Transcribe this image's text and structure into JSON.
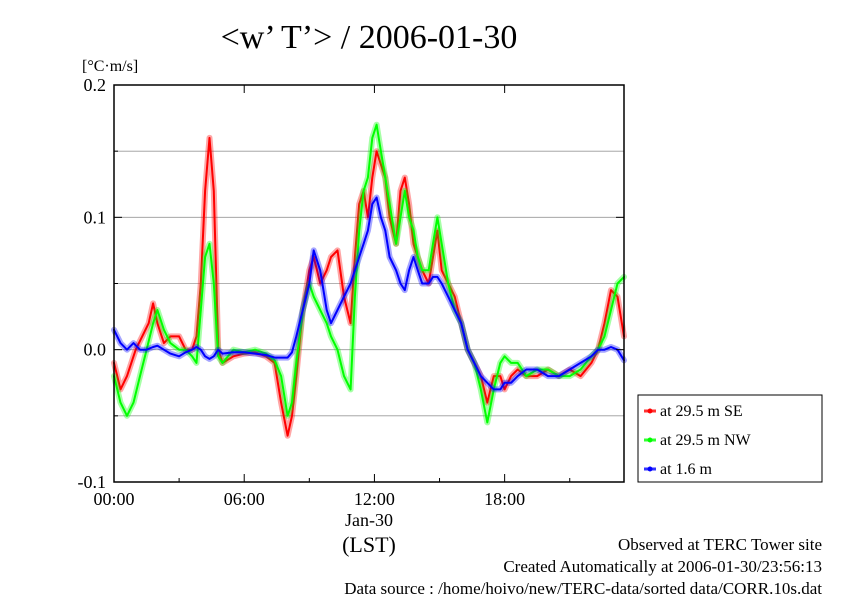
{
  "chart_data": {
    "type": "line",
    "title": "<w’ T’> / 2006-01-30",
    "ylabel": "[°C·m/s]",
    "xlabel": "(LST)",
    "date_label": "Jan-30",
    "x_unit": "hour",
    "xlim": [
      0,
      23.5
    ],
    "ylim": [
      -0.1,
      0.2
    ],
    "x_ticks": [
      {
        "value": 0,
        "label": "00:00"
      },
      {
        "value": 6,
        "label": "06:00"
      },
      {
        "value": 12,
        "label": "12:00"
      },
      {
        "value": 18,
        "label": "18:00"
      }
    ],
    "y_ticks": [
      {
        "value": -0.1,
        "label": "-0.1"
      },
      {
        "value": 0.0,
        "label": "0.0"
      },
      {
        "value": 0.1,
        "label": "0.1"
      },
      {
        "value": 0.2,
        "label": "0.2"
      }
    ],
    "grid": "horizontal",
    "legend_position": "right",
    "series": [
      {
        "name": "at 29.5 m SE",
        "color": "#ff0000",
        "x": [
          0,
          0.3,
          0.6,
          1.0,
          1.3,
          1.6,
          1.8,
          2.0,
          2.3,
          2.6,
          3.0,
          3.3,
          3.6,
          3.8,
          4.0,
          4.2,
          4.4,
          4.6,
          4.8,
          5.0,
          5.5,
          6.0,
          6.5,
          7.0,
          7.4,
          7.7,
          8.0,
          8.2,
          8.4,
          8.7,
          9.0,
          9.2,
          9.5,
          9.8,
          10.0,
          10.3,
          10.6,
          10.9,
          11.1,
          11.3,
          11.5,
          11.7,
          11.9,
          12.1,
          12.3,
          12.5,
          12.7,
          13.0,
          13.2,
          13.4,
          13.6,
          13.8,
          14.0,
          14.2,
          14.5,
          14.7,
          14.9,
          15.1,
          15.4,
          15.7,
          16.0,
          16.3,
          16.6,
          16.9,
          17.2,
          17.5,
          17.8,
          18.0,
          18.3,
          18.6,
          19.0,
          19.5,
          20.0,
          20.5,
          21.0,
          21.5,
          22.0,
          22.3,
          22.6,
          22.9,
          23.2,
          23.5
        ],
        "values": [
          -0.01,
          -0.03,
          -0.02,
          0.0,
          0.01,
          0.02,
          0.035,
          0.02,
          0.005,
          0.01,
          0.01,
          0.0,
          0.0,
          0.01,
          0.05,
          0.12,
          0.16,
          0.12,
          0.0,
          -0.01,
          -0.005,
          -0.003,
          -0.002,
          -0.005,
          -0.01,
          -0.04,
          -0.065,
          -0.05,
          -0.02,
          0.03,
          0.06,
          0.07,
          0.05,
          0.06,
          0.07,
          0.075,
          0.04,
          0.02,
          0.07,
          0.11,
          0.12,
          0.1,
          0.13,
          0.15,
          0.14,
          0.13,
          0.1,
          0.08,
          0.12,
          0.13,
          0.11,
          0.08,
          0.07,
          0.06,
          0.05,
          0.07,
          0.09,
          0.06,
          0.05,
          0.04,
          0.02,
          0.0,
          -0.01,
          -0.02,
          -0.04,
          -0.02,
          -0.02,
          -0.03,
          -0.02,
          -0.015,
          -0.02,
          -0.02,
          -0.015,
          -0.02,
          -0.015,
          -0.02,
          -0.01,
          0.0,
          0.02,
          0.045,
          0.04,
          0.01
        ]
      },
      {
        "name": "at 29.5 m NW",
        "color": "#00ff00",
        "x": [
          0,
          0.3,
          0.6,
          0.9,
          1.2,
          1.5,
          1.8,
          2.0,
          2.3,
          2.6,
          3.0,
          3.3,
          3.6,
          3.8,
          4.0,
          4.2,
          4.4,
          4.6,
          4.8,
          5.0,
          5.5,
          6.0,
          6.5,
          7.0,
          7.4,
          7.7,
          8.0,
          8.2,
          8.4,
          8.7,
          9.0,
          9.2,
          9.5,
          9.8,
          10.0,
          10.3,
          10.6,
          10.9,
          11.1,
          11.3,
          11.5,
          11.7,
          11.9,
          12.1,
          12.3,
          12.5,
          12.7,
          13.0,
          13.2,
          13.4,
          13.6,
          13.8,
          14.0,
          14.2,
          14.5,
          14.7,
          14.9,
          15.1,
          15.4,
          15.7,
          16.0,
          16.3,
          16.6,
          16.9,
          17.2,
          17.5,
          17.8,
          18.0,
          18.3,
          18.6,
          19.0,
          19.5,
          20.0,
          20.5,
          21.0,
          21.5,
          22.0,
          22.3,
          22.6,
          22.9,
          23.2,
          23.5
        ],
        "values": [
          -0.02,
          -0.04,
          -0.05,
          -0.04,
          -0.02,
          0.0,
          0.02,
          0.03,
          0.015,
          0.005,
          0.0,
          0.0,
          -0.005,
          -0.01,
          0.03,
          0.07,
          0.08,
          0.05,
          -0.005,
          -0.01,
          0.0,
          -0.002,
          0.0,
          -0.003,
          -0.008,
          -0.02,
          -0.05,
          -0.04,
          -0.01,
          0.03,
          0.05,
          0.04,
          0.03,
          0.02,
          0.01,
          0.0,
          -0.02,
          -0.03,
          0.04,
          0.09,
          0.12,
          0.13,
          0.16,
          0.17,
          0.15,
          0.13,
          0.11,
          0.08,
          0.1,
          0.12,
          0.1,
          0.09,
          0.07,
          0.06,
          0.06,
          0.08,
          0.1,
          0.08,
          0.05,
          0.03,
          0.02,
          0.0,
          -0.01,
          -0.03,
          -0.055,
          -0.03,
          -0.01,
          -0.005,
          -0.01,
          -0.01,
          -0.02,
          -0.015,
          -0.015,
          -0.02,
          -0.02,
          -0.015,
          -0.005,
          0.0,
          0.01,
          0.03,
          0.05,
          0.055
        ]
      },
      {
        "name": "at 1.6 m",
        "color": "#0000ff",
        "x": [
          0,
          0.3,
          0.6,
          0.9,
          1.2,
          1.5,
          1.8,
          2.0,
          2.3,
          2.6,
          3.0,
          3.3,
          3.6,
          3.8,
          4.0,
          4.2,
          4.4,
          4.6,
          4.8,
          5.0,
          5.5,
          6.0,
          6.5,
          7.0,
          7.4,
          7.7,
          8.0,
          8.2,
          8.4,
          8.7,
          9.0,
          9.2,
          9.5,
          9.8,
          10.0,
          10.3,
          10.6,
          10.9,
          11.1,
          11.3,
          11.5,
          11.7,
          11.9,
          12.1,
          12.3,
          12.5,
          12.7,
          13.0,
          13.2,
          13.4,
          13.6,
          13.8,
          14.0,
          14.2,
          14.5,
          14.7,
          14.9,
          15.1,
          15.4,
          15.7,
          16.0,
          16.3,
          16.6,
          16.9,
          17.2,
          17.5,
          17.8,
          18.0,
          18.3,
          18.6,
          19.0,
          19.5,
          20.0,
          20.5,
          21.0,
          21.5,
          22.0,
          22.3,
          22.6,
          22.9,
          23.2,
          23.5
        ],
        "values": [
          0.015,
          0.005,
          0.0,
          0.005,
          0.0,
          0.0,
          0.002,
          0.003,
          0.0,
          -0.003,
          -0.005,
          -0.002,
          0.0,
          0.002,
          0.0,
          -0.005,
          -0.007,
          -0.005,
          0.0,
          -0.003,
          -0.002,
          -0.002,
          -0.003,
          -0.004,
          -0.006,
          -0.006,
          -0.006,
          -0.002,
          0.01,
          0.03,
          0.05,
          0.075,
          0.06,
          0.03,
          0.02,
          0.03,
          0.04,
          0.05,
          0.06,
          0.07,
          0.08,
          0.09,
          0.11,
          0.115,
          0.1,
          0.09,
          0.07,
          0.06,
          0.05,
          0.045,
          0.06,
          0.07,
          0.06,
          0.05,
          0.05,
          0.055,
          0.055,
          0.05,
          0.04,
          0.03,
          0.02,
          0.0,
          -0.01,
          -0.02,
          -0.025,
          -0.03,
          -0.03,
          -0.025,
          -0.025,
          -0.02,
          -0.015,
          -0.015,
          -0.02,
          -0.02,
          -0.015,
          -0.01,
          -0.005,
          0.0,
          0.0,
          0.002,
          0.0,
          -0.008
        ]
      }
    ]
  },
  "footer": {
    "line1": "Observed at TERC Tower site",
    "line2": "Created Automatically at 2006-01-30/23:56:13",
    "line3": "Data source : /home/hoivo/new/TERC-data/sorted  data/CORR.10s.dat"
  }
}
